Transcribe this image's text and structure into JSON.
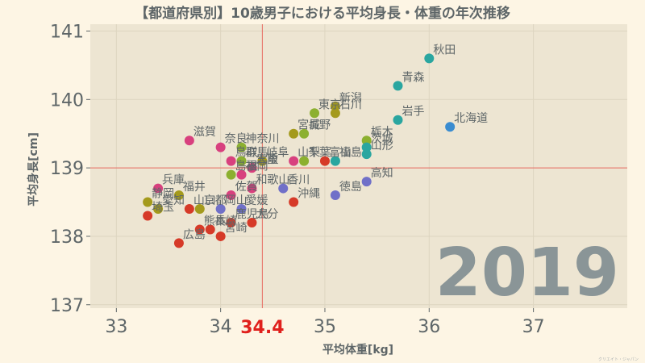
{
  "chart_data": {
    "type": "scatter",
    "title": "【都道府県別】10歳男子における平均身長・体重の年次推移",
    "xlabel": "平均体重[kg]",
    "ylabel": "平均身長[cm]",
    "xlim": [
      32.75,
      37.9
    ],
    "ylim": [
      136.95,
      141.1
    ],
    "xticks": [
      33,
      34,
      35,
      36,
      37
    ],
    "yticks": [
      137,
      138,
      139,
      140,
      141
    ],
    "mean_x": 34.4,
    "mean_x_label": "34.4",
    "mean_y": 139.0,
    "year": "2019",
    "grid": true,
    "credit": "クリエイト・ジャパン",
    "points": [
      {
        "label": "秋田",
        "x": 36.0,
        "y": 140.6,
        "color": "#2aa6a0"
      },
      {
        "label": "青森",
        "x": 35.7,
        "y": 140.2,
        "color": "#2aa6a0"
      },
      {
        "label": "新潟",
        "x": 35.1,
        "y": 139.9,
        "color": "#a49a1c"
      },
      {
        "label": "東京",
        "x": 34.9,
        "y": 139.8,
        "color": "#8cb030"
      },
      {
        "label": "石川",
        "x": 35.1,
        "y": 139.8,
        "color": "#a49a1c"
      },
      {
        "label": "岩手",
        "x": 35.7,
        "y": 139.7,
        "color": "#2aa6a0"
      },
      {
        "label": "北海道",
        "x": 36.2,
        "y": 139.6,
        "color": "#3a8cd0"
      },
      {
        "label": "宮城",
        "x": 34.7,
        "y": 139.5,
        "color": "#a49a1c"
      },
      {
        "label": "長野",
        "x": 34.8,
        "y": 139.5,
        "color": "#8cb030"
      },
      {
        "label": "滋賀",
        "x": 33.7,
        "y": 139.4,
        "color": "#d8407e"
      },
      {
        "label": "奈良",
        "x": 34.0,
        "y": 139.3,
        "color": "#d8407e"
      },
      {
        "label": "神奈川",
        "x": 34.2,
        "y": 139.3,
        "color": "#8cb030"
      },
      {
        "label": "栃木",
        "x": 35.4,
        "y": 139.4,
        "color": "#8cb030"
      },
      {
        "label": "茨城",
        "x": 35.4,
        "y": 139.3,
        "color": "#2aa6a0"
      },
      {
        "label": "山形",
        "x": 35.4,
        "y": 139.2,
        "color": "#2aa6a0"
      },
      {
        "label": "鳥取",
        "x": 34.1,
        "y": 139.1,
        "color": "#d8407e"
      },
      {
        "label": "群馬",
        "x": 34.2,
        "y": 139.1,
        "color": "#8cb030"
      },
      {
        "label": "岐阜",
        "x": 34.4,
        "y": 139.1,
        "color": "#a49a1c"
      },
      {
        "label": "山梨",
        "x": 34.7,
        "y": 139.1,
        "color": "#d8407e"
      },
      {
        "label": "千葉",
        "x": 34.8,
        "y": 139.1,
        "color": "#8cb030"
      },
      {
        "label": "富山",
        "x": 35.0,
        "y": 139.1,
        "color": "#d63a28"
      },
      {
        "label": "福島",
        "x": 35.1,
        "y": 139.1,
        "color": "#2aa6a0"
      },
      {
        "label": "三重",
        "x": 34.3,
        "y": 139.0,
        "color": "#d8407e"
      },
      {
        "label": "大阪",
        "x": 34.3,
        "y": 139.0,
        "color": "#d8407e"
      },
      {
        "label": "福岡",
        "x": 34.2,
        "y": 138.9,
        "color": "#d8407e"
      },
      {
        "label": "島根",
        "x": 34.1,
        "y": 138.9,
        "color": "#8cb030"
      },
      {
        "label": "徳島",
        "x": 35.1,
        "y": 138.6,
        "color": "#7070c8"
      },
      {
        "label": "高知",
        "x": 35.4,
        "y": 138.8,
        "color": "#7070c8"
      },
      {
        "label": "和歌山",
        "x": 34.3,
        "y": 138.7,
        "color": "#d8407e"
      },
      {
        "label": "香川",
        "x": 34.6,
        "y": 138.7,
        "color": "#7070c8"
      },
      {
        "label": "沖縄",
        "x": 34.7,
        "y": 138.5,
        "color": "#d63a28"
      },
      {
        "label": "兵庫",
        "x": 33.4,
        "y": 138.7,
        "color": "#d8407e"
      },
      {
        "label": "佐賀",
        "x": 34.1,
        "y": 138.6,
        "color": "#d8407e"
      },
      {
        "label": "静岡",
        "x": 33.3,
        "y": 138.5,
        "color": "#a49a1c"
      },
      {
        "label": "福井",
        "x": 33.6,
        "y": 138.6,
        "color": "#a49a1c"
      },
      {
        "label": "愛知",
        "x": 33.4,
        "y": 138.4,
        "color": "#a49a1c"
      },
      {
        "label": "山口",
        "x": 33.7,
        "y": 138.4,
        "color": "#d63a28"
      },
      {
        "label": "京都",
        "x": 33.8,
        "y": 138.4,
        "color": "#a49a1c"
      },
      {
        "label": "岡山",
        "x": 34.0,
        "y": 138.4,
        "color": "#7070c8"
      },
      {
        "label": "愛媛",
        "x": 34.2,
        "y": 138.4,
        "color": "#7070c8"
      },
      {
        "label": "埼玉",
        "x": 33.3,
        "y": 138.3,
        "color": "#d63a28"
      },
      {
        "label": "広島",
        "x": 33.6,
        "y": 137.9,
        "color": "#d63a28"
      },
      {
        "label": "熊本",
        "x": 33.8,
        "y": 138.1,
        "color": "#d63a28"
      },
      {
        "label": "長崎",
        "x": 33.9,
        "y": 138.1,
        "color": "#d63a28"
      },
      {
        "label": "宮崎",
        "x": 34.0,
        "y": 138.0,
        "color": "#d63a28"
      },
      {
        "label": "鹿児島",
        "x": 34.1,
        "y": 138.2,
        "color": "#d63a28"
      },
      {
        "label": "大分",
        "x": 34.3,
        "y": 138.2,
        "color": "#d63a28"
      }
    ]
  }
}
